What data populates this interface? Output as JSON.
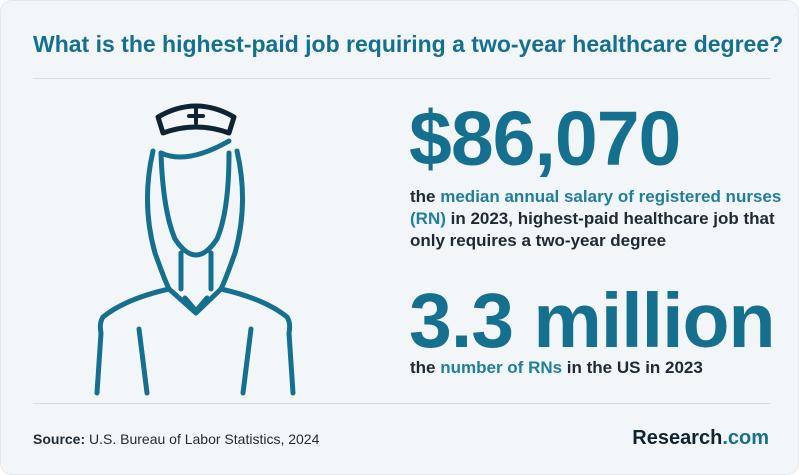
{
  "header": {
    "title": "What is the highest-paid job requiring a two-year healthcare degree?"
  },
  "illustration": {
    "icon": "nurse-icon",
    "accent_color": "#14708e"
  },
  "stat_salary": {
    "value": "$86,070",
    "desc_pre": "the ",
    "desc_highlight": "median annual salary of registered nurses (RN)",
    "desc_post": " in 2023, highest-paid healthcare job that only requires a two-year degree"
  },
  "stat_count": {
    "value": "3.3 million",
    "desc_pre": "the ",
    "desc_highlight": "number of RNs",
    "desc_post": " in the US in 2023"
  },
  "footer": {
    "source_label": "Source:",
    "source_text": " U.S. Bureau of Labor Statistics, 2024",
    "brand_main": "Research",
    "brand_suffix": ".com"
  }
}
